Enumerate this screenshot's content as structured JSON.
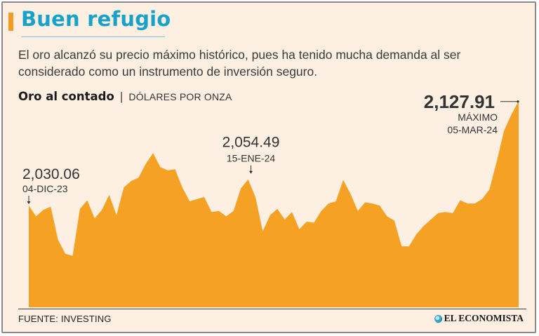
{
  "header": {
    "title": "Buen refugio",
    "subtitle": "El oro alcanzó su precio máximo histórico, pues ha tenido mucha demanda al ser considerado como un instrumento de inversión seguro."
  },
  "chart_heading": {
    "title": "Oro al contado",
    "separator": "|",
    "unit": "DÓLARES POR ONZA"
  },
  "footer": {
    "source": "FUENTE: INVESTING",
    "logo_text": "EL ECONOMISTA"
  },
  "colors": {
    "background": "#fdf0e3",
    "area_fill": "#f5a124",
    "title": "#19a2c9",
    "accent": "#f39c1f"
  },
  "chart_data": {
    "type": "area",
    "series": [
      {
        "values": [
          2030.06,
          2020,
          2026,
          2029,
          1998,
          1985,
          1983,
          2027,
          2035,
          2018,
          2026,
          2040,
          2021,
          2047,
          2053,
          2056,
          2069,
          2079,
          2066,
          2063,
          2064,
          2047,
          2034,
          2036,
          2038,
          2024,
          2025,
          2020,
          2025,
          2046,
          2054.49,
          2038,
          2006,
          2021,
          2027,
          2017,
          2024,
          2008,
          2015,
          2014,
          2025,
          2032,
          2034,
          2054,
          2041,
          2025,
          2033,
          2032,
          2030,
          2020,
          2016,
          1992,
          1992,
          2003,
          2011,
          2017,
          2023,
          2024,
          2023,
          2035,
          2032,
          2032,
          2036,
          2045,
          2071,
          2100,
          2115,
          2127.91
        ]
      }
    ],
    "ylim": [
      1935,
      2133
    ],
    "annotations": [
      {
        "index": 0,
        "value": "2,030.06",
        "date": "04-DIC-23"
      },
      {
        "index": 30,
        "value": "2,054.49",
        "date": "15-ENE-24"
      },
      {
        "index": 67,
        "value": "2,127.91",
        "label": "MÁXIMO",
        "date": "05-MAR-24"
      }
    ]
  }
}
